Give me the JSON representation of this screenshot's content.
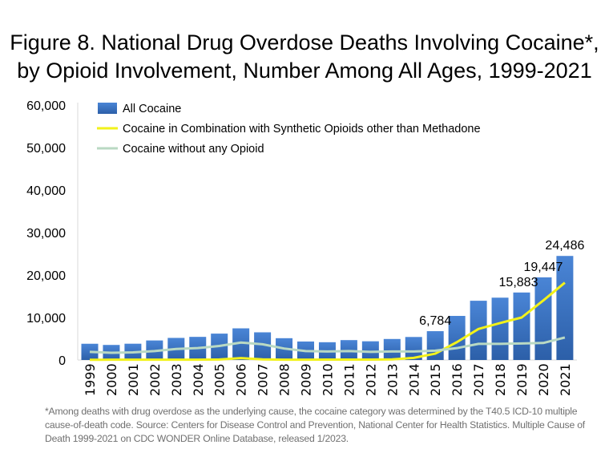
{
  "title": {
    "line1": "Figure 8. National Drug Overdose Deaths Involving Cocaine*,",
    "line2": "by Opioid Involvement, Number Among All Ages, 1999-2021"
  },
  "footnote": "*Among deaths with drug overdose as the underlying cause, the cocaine category was determined by the T40.5 ICD-10 multiple cause-of-death code. Source: Centers for Disease Control and Prevention, National Center for Health Statistics. Multiple Cause of Death 1999-2021 on CDC WONDER Online Database, released 1/2023.",
  "chart_data": {
    "type": "bar",
    "categories": [
      "1999",
      "2000",
      "2001",
      "2002",
      "2003",
      "2004",
      "2005",
      "2006",
      "2007",
      "2008",
      "2009",
      "2010",
      "2011",
      "2012",
      "2013",
      "2014",
      "2015",
      "2016",
      "2017",
      "2018",
      "2019",
      "2020",
      "2021"
    ],
    "ylim": [
      0,
      60000
    ],
    "yticks": [
      "0",
      "10,000",
      "20,000",
      "30,000",
      "40,000",
      "50,000",
      "60,000"
    ],
    "ytick_values": [
      0,
      10000,
      20000,
      30000,
      40000,
      50000,
      60000
    ],
    "legend_position": "top-left",
    "grid": false,
    "series": [
      {
        "name": "All Cocaine",
        "type": "bar",
        "color": "#3a72c4",
        "values": [
          3822,
          3544,
          3833,
          4599,
          5199,
          5443,
          6208,
          7448,
          6512,
          5129,
          4350,
          4183,
          4681,
          4404,
          4944,
          5415,
          6784,
          10375,
          13942,
          14666,
          15883,
          19447,
          24486
        ]
      },
      {
        "name": "Cocaine in Combination with Synthetic Opioids other than Methadone",
        "type": "line",
        "color": "#f2f21a",
        "values": [
          50,
          60,
          60,
          60,
          70,
          80,
          120,
          450,
          150,
          80,
          80,
          90,
          100,
          100,
          150,
          500,
          1500,
          4200,
          7300,
          8700,
          10000,
          14000,
          18200
        ]
      },
      {
        "name": "Cocaine without any Opioid",
        "type": "line",
        "color": "#b9d9c3",
        "values": [
          1900,
          1700,
          1800,
          2100,
          2600,
          2800,
          3300,
          4100,
          3700,
          2700,
          2100,
          2000,
          2100,
          1900,
          2000,
          2000,
          2200,
          2800,
          3800,
          3800,
          3900,
          4000,
          5300
        ]
      }
    ],
    "data_labels": [
      {
        "category": "2015",
        "text": "6,784"
      },
      {
        "category": "2019",
        "text": "15,883"
      },
      {
        "category": "2020",
        "text": "19,447"
      },
      {
        "category": "2021",
        "text": "24,486"
      }
    ]
  }
}
